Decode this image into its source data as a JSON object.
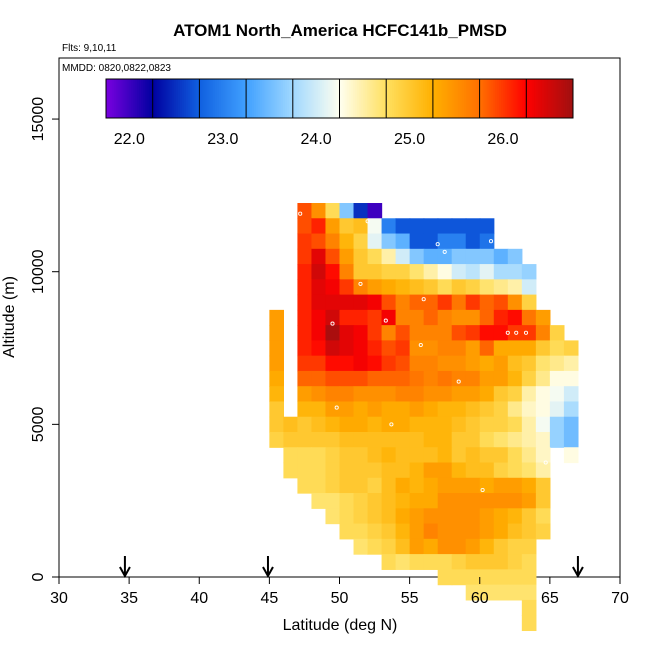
{
  "chart_data": {
    "type": "heatmap",
    "title": "ATOM1 North_America HCFC141b_PMSD",
    "flights_label": "Flts: 9,10,11",
    "mmdd_label": "MMDD: 0820,0822,0823",
    "xlabel": "Latitude (deg N)",
    "ylabel": "Altitude (m)",
    "xlim": [
      30,
      70
    ],
    "ylim": [
      0,
      17000
    ],
    "x_ticks": [
      "30",
      "35",
      "40",
      "45",
      "50",
      "55",
      "60",
      "65",
      "70"
    ],
    "y_ticks": [
      "0",
      "5000",
      "10000",
      "15000"
    ],
    "colorbar": {
      "range": [
        21.75,
        26.75
      ],
      "tick_labels": [
        "22.0",
        "23.0",
        "24.0",
        "25.0",
        "26.0"
      ],
      "tick_values": [
        22.0,
        23.0,
        24.0,
        25.0,
        26.0
      ]
    },
    "palette": [
      "#7a00e0",
      "#0000a0",
      "#1060e0",
      "#40a0ff",
      "#a0d8ff",
      "#fffff0",
      "#ffe060",
      "#ffb000",
      "#ff7000",
      "#ff0000",
      "#a01010"
    ],
    "arrows_latitude": [
      34.7,
      44.9,
      67.0
    ],
    "grid": {
      "lat_start": 45.5,
      "lat_step": 1.0,
      "alt_start": 12000,
      "alt_step": 500,
      "rows": [
        "  ,  ,25.9,25.5,24.8,23.6,22.5,22.0,  ,  ,  ,  ,  ,  ,  ,  ,  ,  ,  ,  ,  ,  ",
        "  ,  ,25.9,26.1,25.4,25.0,25.1,24.2,23.0,22.7,22.7,22.7,22.7,22.7,22.7,22.7,  ,  ,  ,  ,  ,  ",
        "  ,  ,26.0,25.9,25.6,25.2,24.9,24.1,23.6,23.4,22.7,22.7,23.0,23.0,22.7,22.9,  ,  ,  ,  ,  ,  ",
        "  ,  ,26.0,26.4,25.9,25.4,25.0,24.8,24.5,24.0,23.6,23.4,23.4,23.6,23.6,23.6,23.4,23.6,  ,  ,  ,  ",
        "  ,  ,26.1,26.5,26.2,25.6,25.0,25.0,24.9,24.9,24.7,24.5,24.3,24.0,23.9,24.1,23.8,23.8,23.7,  ,  ,  ",
        "  ,  ,26.1,26.4,26.3,26.0,25.6,25.4,25.3,25.2,25.1,25.0,24.8,25.0,24.9,24.7,24.6,24.5,24.0,  ,  ,  ",
        "  ,  ,26.1,26.4,26.4,26.4,26.4,26.3,25.9,25.6,25.8,25.8,26.0,25.7,26.0,25.8,25.9,25.5,24.9,  ,  ,  ",
        "25.4,  ,26.1,26.3,26.5,26.1,26.1,26.0,26.3,25.6,25.6,25.8,25.6,25.5,25.5,25.8,26.1,26.2,25.7,25.4,  ,  ",
        "25.4,  ,26.1,26.3,26.7,26.4,26.3,26.0,25.6,25.9,25.6,25.6,25.6,25.9,26.0,26.2,26.2,26.0,26.0,25.6,24.9,  ",
        "25.4,  ,26.1,26.2,26.5,26.4,26.3,26.1,25.9,26.0,25.5,25.5,25.6,25.6,25.4,25.8,25.3,25.3,25.3,25.0,24.8,24.9",
        "25.4,  ,26.0,26.0,26.2,26.2,26.3,26.2,26.0,25.9,25.6,25.6,25.5,25.5,25.4,25.3,25.4,25.1,25.0,24.7,24.6,24.5",
        "25.3,  ,25.8,25.8,25.9,25.9,25.9,25.8,25.8,25.8,25.7,25.6,25.7,25.6,25.6,25.4,25.4,25.2,24.9,24.6,24.3,24.3",
        "25.2,  ,25.4,25.5,25.6,25.6,25.5,25.5,25.5,25.6,25.6,25.5,25.5,25.4,25.4,25.3,25.0,24.9,24.5,24.3,24.2,24.0",
        "25.0,  ,25.2,25.2,25.4,25.4,25.3,25.4,25.3,25.3,25.4,25.3,25.2,25.2,25.1,25.0,24.9,24.6,24.4,24.3,24.1,23.8",
        "25.0,25.1,25.0,25.1,25.2,25.3,25.3,25.2,25.3,25.3,25.2,25.2,25.2,25.1,25.0,24.9,24.9,24.8,24.5,24.2,23.7,23.5",
        "24.9,25.0,25.0,25.0,25.0,25.1,25.1,25.1,25.1,25.1,25.1,25.2,25.2,25.0,25.0,24.8,24.7,24.6,24.5,24.4,23.7,23.5",
        "  ,24.8,24.8,24.8,24.9,25.0,25.0,25.1,25.2,25.1,25.1,25.1,25.2,25.0,25.1,25.0,25.0,24.8,24.6,24.4,  ,24.3",
        "  ,24.8,24.8,24.8,24.9,25.0,25.0,25.0,25.1,25.1,25.2,25.4,25.4,25.2,25.1,25.1,24.9,24.8,24.7,24.5,  ,  ",
        "  ,  ,24.8,24.8,24.9,25.0,25.0,24.9,25.1,25.3,25.2,25.3,25.4,25.4,25.4,25.3,25.4,25.4,25.3,25.0,  ,  ",
        "  ,  ,  ,24.7,24.7,24.8,24.9,25.0,25.1,25.2,25.3,25.3,25.5,25.5,25.5,25.5,25.5,25.5,25.4,25.0,  ,  ",
        "  ,  ,  ,  ,24.7,24.8,24.9,25.0,25.1,25.3,25.4,25.5,25.5,25.5,25.5,25.4,25.3,25.2,25.0,24.8,  ,  ",
        "  ,  ,  ,  ,  ,24.8,24.8,24.9,25.0,25.2,25.4,25.6,25.5,25.5,25.5,25.4,25.3,25.1,25.0,24.9,  ,  ",
        "  ,  ,  ,  ,  ,  ,24.7,24.8,24.9,25.1,25.4,25.3,25.5,25.5,25.4,25.2,25.0,24.9,24.9,  ,  ,  ",
        "  ,  ,  ,  ,  ,  ,  ,  ,24.8,24.7,24.8,24.8,24.8,24.9,25.0,25.0,25.0,24.9,24.8,  ,  ,  ",
        "  ,  ,  ,  ,  ,  ,  ,  ,  ,  ,  ,  ,24.8,24.8,24.8,24.8,24.8,24.8,24.8,  ,  ,  ",
        "  ,  ,  ,  ,  ,  ,  ,  ,  ,  ,  ,  ,  ,  ,24.7,24.7,24.7,24.7,24.7,  ,  ,  ",
        "  ,  ,  ,  ,  ,  ,  ,  ,  ,  ,  ,  ,  ,  ,  ,  ,  ,  ,24.8,  ,  ,  ",
        "  ,  ,  ,  ,  ,  ,  ,  ,  ,  ,  ,  ,  ,  ,  ,  ,  ,  ,24.8,  ,  ,  "
      ]
    },
    "sample_points": [
      [
        46.6,
        11900
      ],
      [
        47.2,
        11900
      ],
      [
        52.0,
        11650
      ],
      [
        57.0,
        10900
      ],
      [
        57.5,
        10650
      ],
      [
        60.8,
        11000
      ],
      [
        51.5,
        9600
      ],
      [
        56.0,
        9100
      ],
      [
        49.5,
        8300
      ],
      [
        53.3,
        8400
      ],
      [
        62.0,
        8000
      ],
      [
        62.6,
        8000
      ],
      [
        63.3,
        8000
      ],
      [
        55.8,
        7600
      ],
      [
        58.5,
        6400
      ],
      [
        49.8,
        5550
      ],
      [
        53.7,
        5000
      ],
      [
        64.7,
        3750
      ],
      [
        60.2,
        2850
      ],
      [
        67.2,
        4150
      ]
    ]
  }
}
